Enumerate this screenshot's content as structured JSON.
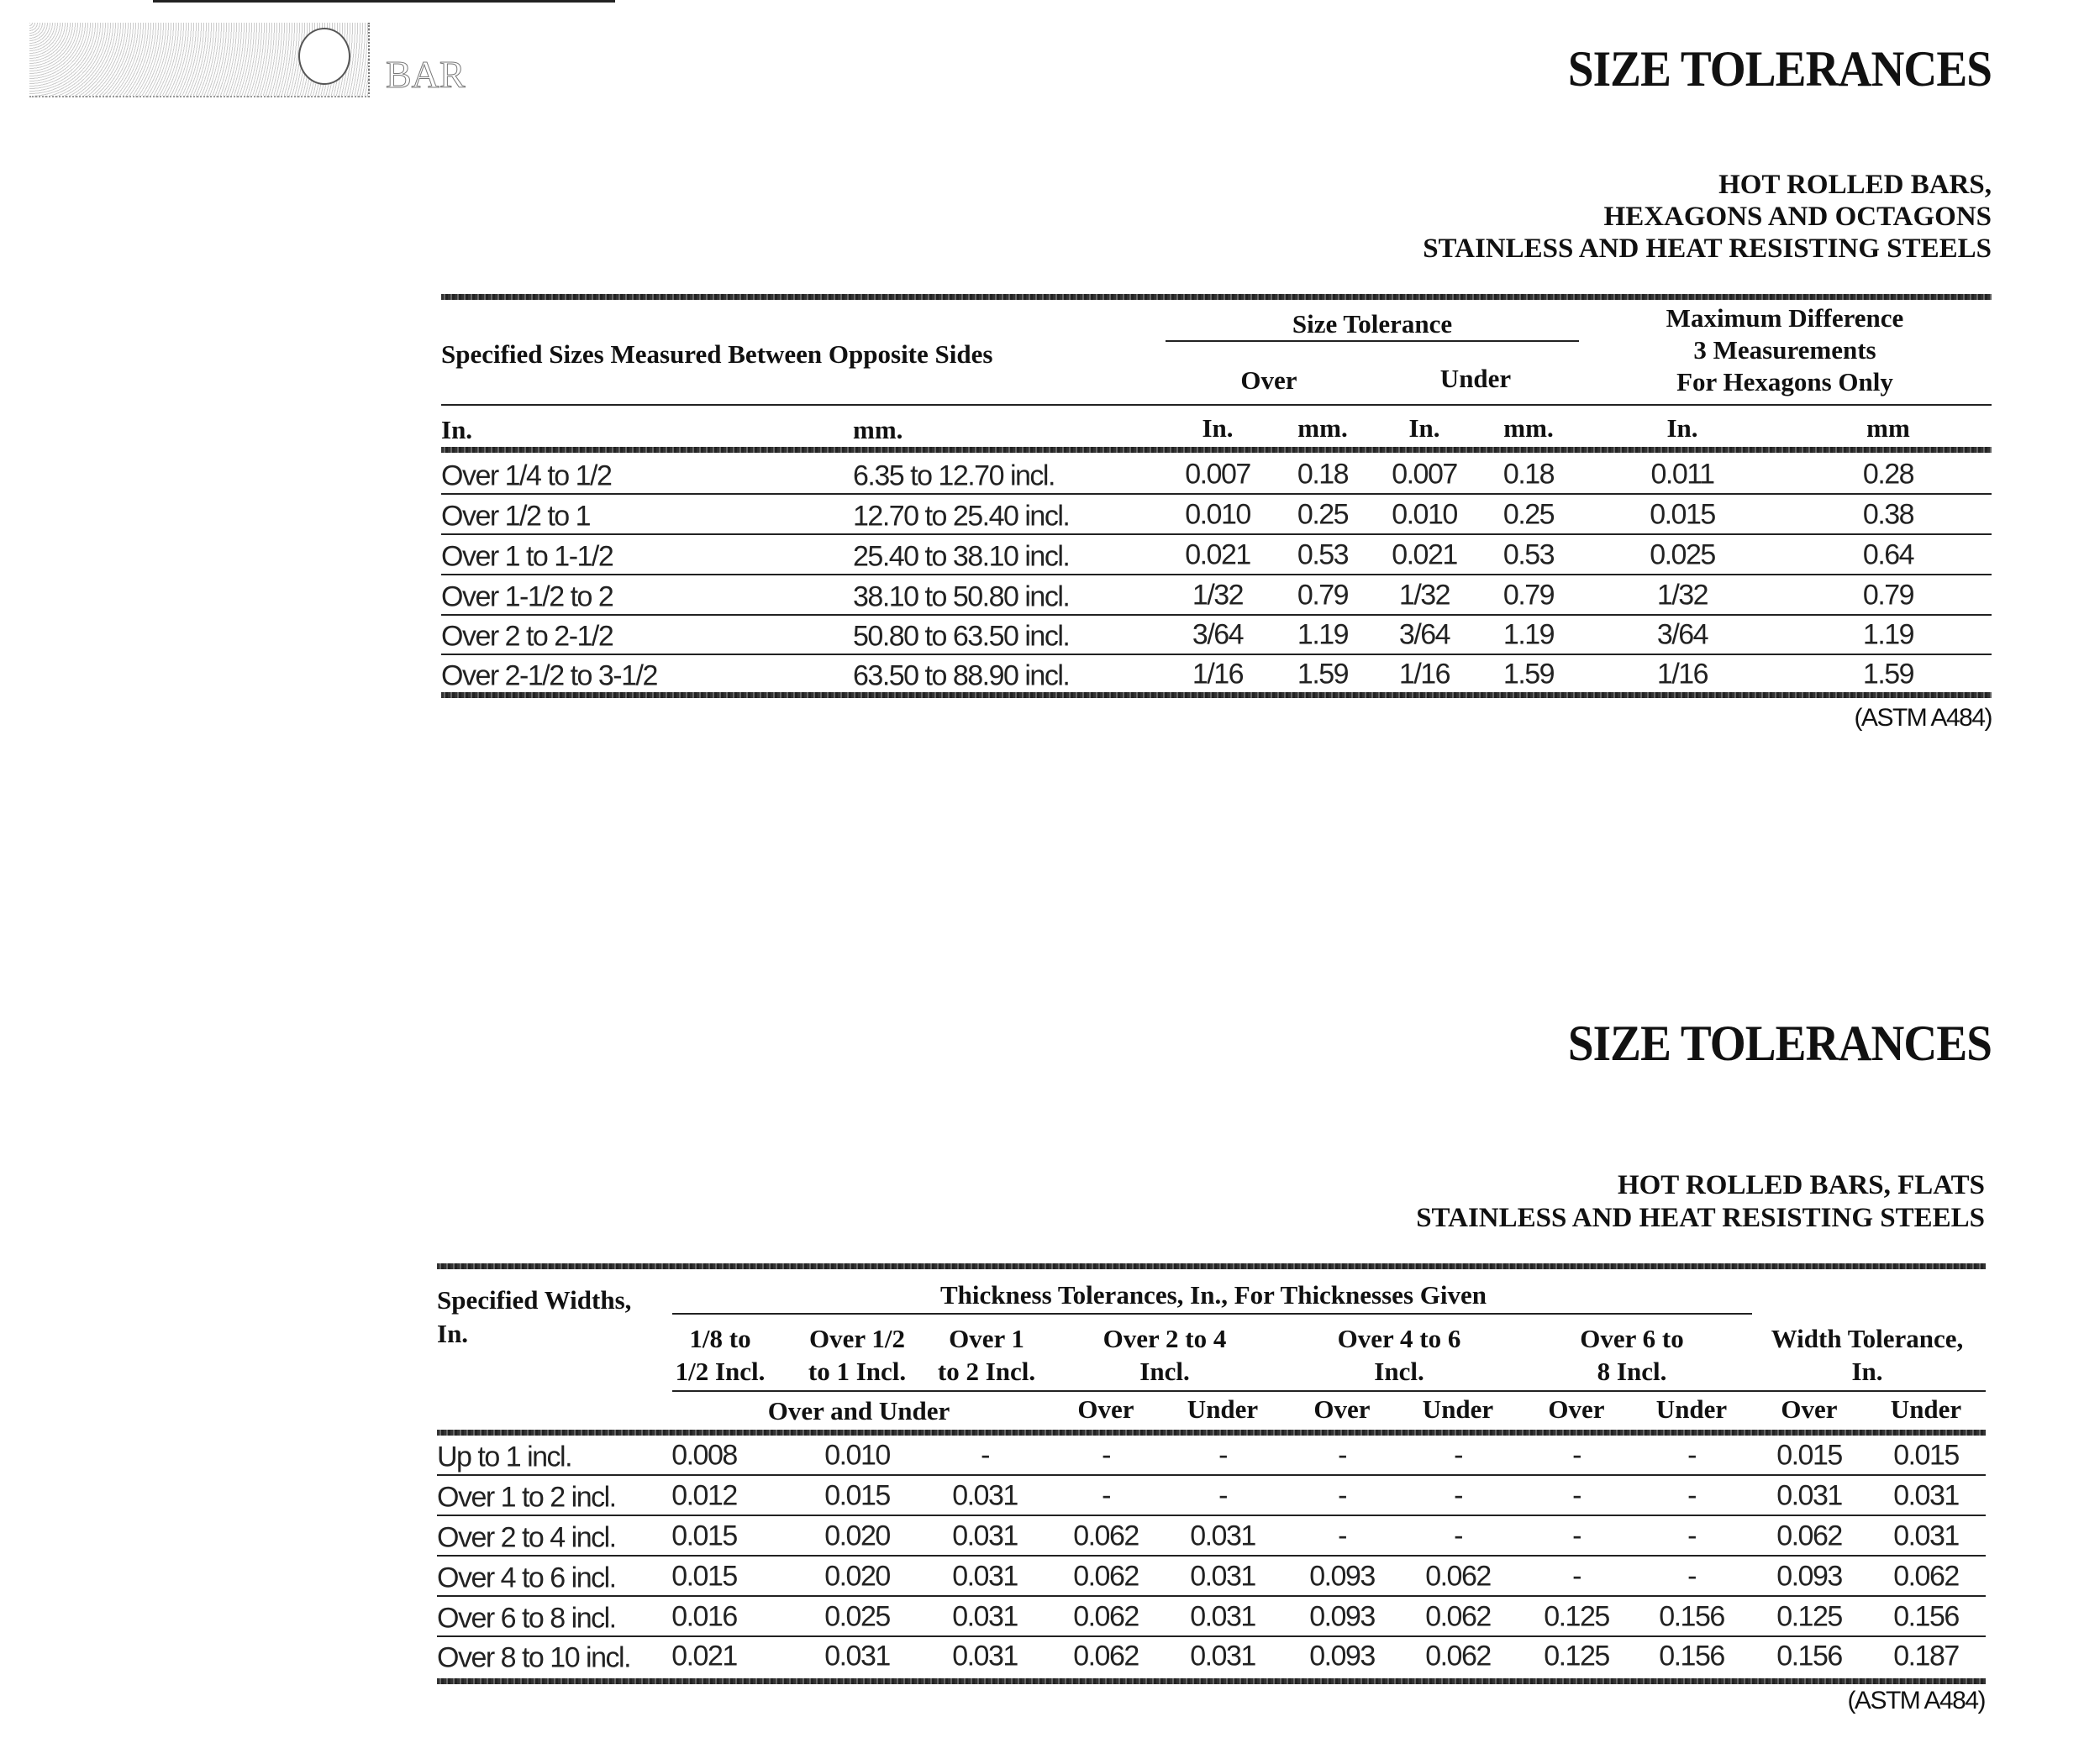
{
  "logo": {
    "text": "BAR"
  },
  "section1": {
    "title": "SIZE TOLERANCES",
    "subtitle_lines": [
      "HOT ROLLED BARS,",
      "HEXAGONS AND OCTAGONS",
      "STAINLESS AND HEAT RESISTING STEELS"
    ],
    "headers": {
      "specified": "Specified Sizes Measured Between Opposite Sides",
      "size_tolerance": "Size Tolerance",
      "over": "Over",
      "under": "Under",
      "max_diff_lines": [
        "Maximum Difference",
        "3 Measurements",
        "For Hexagons Only"
      ],
      "units": [
        "In.",
        "mm.",
        "In.",
        "mm.",
        "In.",
        "mm.",
        "In.",
        "mm"
      ]
    },
    "rows": [
      [
        "Over 1/4 to 1/2",
        "6.35 to 12.70 incl.",
        "0.007",
        "0.18",
        "0.007",
        "0.18",
        "0.011",
        "0.28"
      ],
      [
        "Over 1/2 to 1",
        "12.70 to 25.40 incl.",
        "0.010",
        "0.25",
        "0.010",
        "0.25",
        "0.015",
        "0.38"
      ],
      [
        "Over 1 to 1-1/2",
        "25.40 to 38.10 incl.",
        "0.021",
        "0.53",
        "0.021",
        "0.53",
        "0.025",
        "0.64"
      ],
      [
        "Over 1-1/2 to 2",
        "38.10 to 50.80 incl.",
        "1/32",
        "0.79",
        "1/32",
        "0.79",
        "1/32",
        "0.79"
      ],
      [
        "Over 2 to 2-1/2",
        "50.80 to 63.50 incl.",
        "3/64",
        "1.19",
        "3/64",
        "1.19",
        "3/64",
        "1.19"
      ],
      [
        "Over 2-1/2 to 3-1/2",
        "63.50 to 88.90 incl.",
        "1/16",
        "1.59",
        "1/16",
        "1.59",
        "1/16",
        "1.59"
      ]
    ],
    "footnote": "(ASTM A484)"
  },
  "section2": {
    "title": "SIZE TOLERANCES",
    "subtitle_lines": [
      "HOT ROLLED BARS, FLATS",
      "STAINLESS AND HEAT RESISTING STEELS"
    ],
    "headers": {
      "specified_lines": [
        "Specified Widths,",
        "In."
      ],
      "thickness": "Thickness Tolerances, In., For Thicknesses Given",
      "groups": [
        [
          "1/8 to",
          "1/2 Incl."
        ],
        [
          "Over 1/2",
          "to 1 Incl."
        ],
        [
          "Over 1",
          "to 2 Incl."
        ],
        [
          "Over 2 to 4",
          "Incl."
        ],
        [
          "Over 4 to 6",
          "Incl."
        ],
        [
          "Over 6 to",
          "8 Incl."
        ],
        [
          "Width Tolerance,",
          "In."
        ]
      ],
      "over_and_under": "Over and Under",
      "sub": [
        "Over",
        "Under",
        "Over",
        "Under",
        "Over",
        "Under",
        "Over",
        "Under"
      ]
    },
    "rows": [
      [
        "Up to 1 incl.",
        "0.008",
        "0.010",
        "-",
        "-",
        "-",
        "-",
        "-",
        "-",
        "-",
        "0.015",
        "0.015"
      ],
      [
        "Over 1 to 2 incl.",
        "0.012",
        "0.015",
        "0.031",
        "-",
        "-",
        "-",
        "-",
        "-",
        "-",
        "0.031",
        "0.031"
      ],
      [
        "Over 2 to 4 incl.",
        "0.015",
        "0.020",
        "0.031",
        "0.062",
        "0.031",
        "-",
        "-",
        "-",
        "-",
        "0.062",
        "0.031"
      ],
      [
        "Over 4 to 6 incl.",
        "0.015",
        "0.020",
        "0.031",
        "0.062",
        "0.031",
        "0.093",
        "0.062",
        "-",
        "-",
        "0.093",
        "0.062"
      ],
      [
        "Over 6 to 8 incl.",
        "0.016",
        "0.025",
        "0.031",
        "0.062",
        "0.031",
        "0.093",
        "0.062",
        "0.125",
        "0.156",
        "0.125",
        "0.156"
      ],
      [
        "Over 8 to 10 incl.",
        "0.021",
        "0.031",
        "0.031",
        "0.062",
        "0.031",
        "0.093",
        "0.062",
        "0.125",
        "0.156",
        "0.156",
        "0.187"
      ]
    ],
    "footnote": "(ASTM A484)"
  }
}
